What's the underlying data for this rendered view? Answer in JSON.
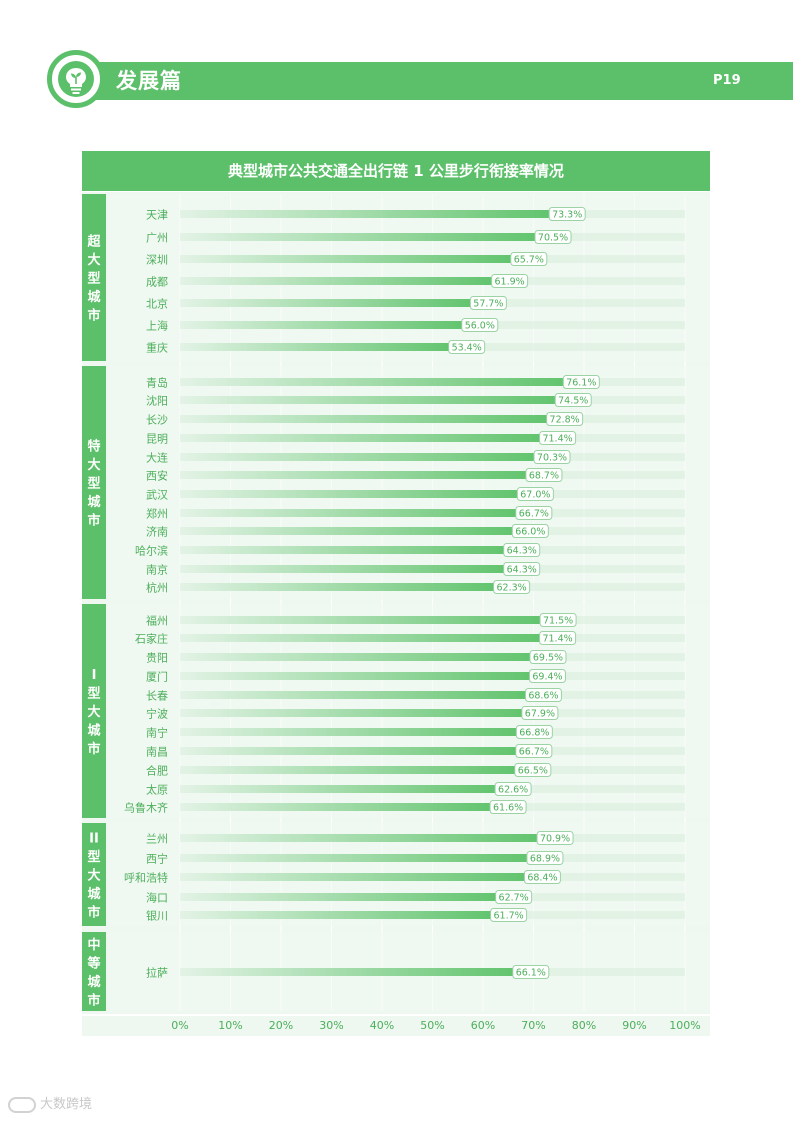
{
  "header": {
    "title": "发展篇",
    "page_number": "P19"
  },
  "watermark": {
    "text": "大数跨境"
  },
  "colors": {
    "accent": "#5cbf6a",
    "bar": "#62c46e",
    "bar_light": "#d8efdc",
    "label_text": "#4caf5a",
    "panel_bg": "#eef7f0",
    "group_bg": "#f3faf4"
  },
  "chart_data": {
    "type": "bar",
    "orientation": "horizontal",
    "title": "典型城市公共交通全出行链 1 公里步行衔接率情况",
    "xlim": [
      0,
      100
    ],
    "x_ticks": [
      "0%",
      "10%",
      "20%",
      "30%",
      "40%",
      "50%",
      "60%",
      "70%",
      "80%",
      "90%",
      "100%"
    ],
    "value_suffix": "%",
    "grid": true,
    "groups": [
      {
        "name_chars": [
          "超",
          "大",
          "型",
          "城",
          "市"
        ],
        "items": [
          {
            "city": "天津",
            "value": 73.3,
            "label": "73.3%"
          },
          {
            "city": "广州",
            "value": 70.5,
            "label": "70.5%"
          },
          {
            "city": "深圳",
            "value": 65.7,
            "label": "65.7%"
          },
          {
            "city": "成都",
            "value": 61.9,
            "label": "61.9%"
          },
          {
            "city": "北京",
            "value": 57.7,
            "label": "57.7%"
          },
          {
            "city": "上海",
            "value": 56.0,
            "label": "56.0%"
          },
          {
            "city": "重庆",
            "value": 53.4,
            "label": "53.4%"
          }
        ]
      },
      {
        "name_chars": [
          "特",
          "大",
          "型",
          "城",
          "市"
        ],
        "items": [
          {
            "city": "青岛",
            "value": 76.1,
            "label": "76.1%"
          },
          {
            "city": "沈阳",
            "value": 74.5,
            "label": "74.5%"
          },
          {
            "city": "长沙",
            "value": 72.8,
            "label": "72.8%"
          },
          {
            "city": "昆明",
            "value": 71.4,
            "label": "71.4%"
          },
          {
            "city": "大连",
            "value": 70.3,
            "label": "70.3%"
          },
          {
            "city": "西安",
            "value": 68.7,
            "label": "68.7%"
          },
          {
            "city": "武汉",
            "value": 67.0,
            "label": "67.0%"
          },
          {
            "city": "郑州",
            "value": 66.7,
            "label": "66.7%"
          },
          {
            "city": "济南",
            "value": 66.0,
            "label": "66.0%"
          },
          {
            "city": "哈尔滨",
            "value": 64.3,
            "label": "64.3%"
          },
          {
            "city": "南京",
            "value": 64.3,
            "label": "64.3%"
          },
          {
            "city": "杭州",
            "value": 62.3,
            "label": "62.3%"
          }
        ]
      },
      {
        "name_chars": [
          "I",
          "型",
          "大",
          "城",
          "市"
        ],
        "items": [
          {
            "city": "福州",
            "value": 71.5,
            "label": "71.5%"
          },
          {
            "city": "石家庄",
            "value": 71.4,
            "label": "71.4%"
          },
          {
            "city": "贵阳",
            "value": 69.5,
            "label": "69.5%"
          },
          {
            "city": "厦门",
            "value": 69.4,
            "label": "69.4%"
          },
          {
            "city": "长春",
            "value": 68.6,
            "label": "68.6%"
          },
          {
            "city": "宁波",
            "value": 67.9,
            "label": "67.9%"
          },
          {
            "city": "南宁",
            "value": 66.8,
            "label": "66.8%"
          },
          {
            "city": "南昌",
            "value": 66.7,
            "label": "66.7%"
          },
          {
            "city": "合肥",
            "value": 66.5,
            "label": "66.5%"
          },
          {
            "city": "太原",
            "value": 62.6,
            "label": "62.6%"
          },
          {
            "city": "乌鲁木齐",
            "value": 61.6,
            "label": "61.6%"
          }
        ]
      },
      {
        "name_chars": [
          "II",
          "型",
          "大",
          "城",
          "市"
        ],
        "items": [
          {
            "city": "兰州",
            "value": 70.9,
            "label": "70.9%"
          },
          {
            "city": "西宁",
            "value": 68.9,
            "label": "68.9%"
          },
          {
            "city": "呼和浩特",
            "value": 68.4,
            "label": "68.4%"
          },
          {
            "city": "海口",
            "value": 62.7,
            "label": "62.7%"
          },
          {
            "city": "银川",
            "value": 61.7,
            "label": "61.7%"
          }
        ]
      },
      {
        "name_chars": [
          "中",
          "等",
          "城",
          "市"
        ],
        "items": [
          {
            "city": "拉萨",
            "value": 66.1,
            "label": "66.1%"
          }
        ]
      }
    ]
  }
}
